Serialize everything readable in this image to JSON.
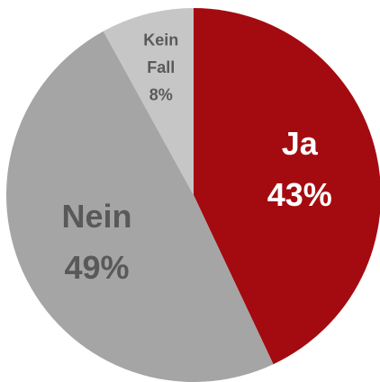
{
  "chart_data": {
    "type": "pie",
    "categories": [
      "Ja",
      "Nein",
      "Kein Fall"
    ],
    "values": [
      43,
      49,
      8
    ],
    "value_labels": [
      "43%",
      "49%",
      "8%"
    ],
    "colors": [
      "#a30b10",
      "#a5a5a5",
      "#c6c6c6"
    ],
    "label_colors": [
      "#ffffff",
      "#595959",
      "#595959"
    ]
  }
}
